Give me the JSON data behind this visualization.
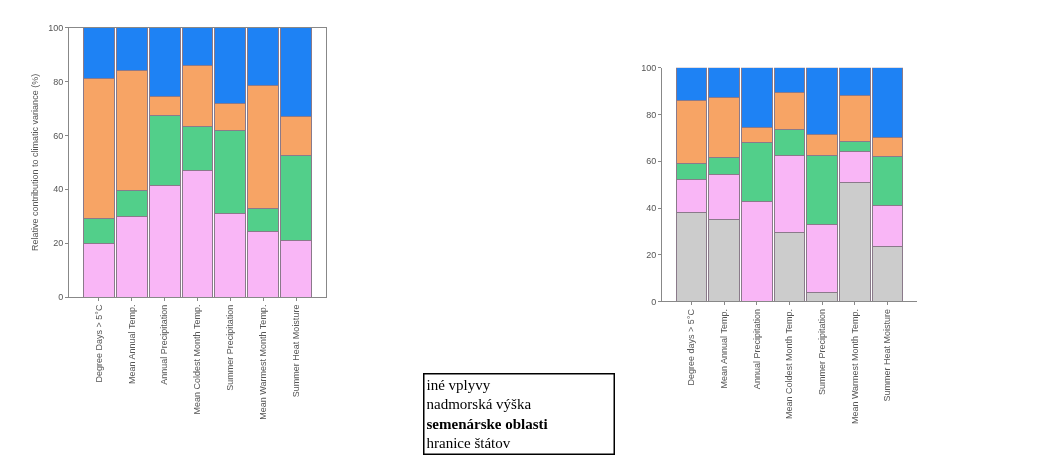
{
  "chart_data": [
    {
      "type": "bar",
      "stacked": true,
      "ylabel": "Relative contribution to climatic variance (%)",
      "categories": [
        "Degree Days > 5°C",
        "Mean Annual Temp.",
        "Annual Precipitation",
        "Mean Coldest Month Temp.",
        "Summer Precipitation",
        "Mean Warmest Month Temp.",
        "Summer Heat Moisture"
      ],
      "ylim": [
        0,
        100
      ],
      "yticks": [
        0,
        20,
        40,
        60,
        80,
        100
      ],
      "series": [
        {
          "color": "#f9b6f6",
          "values": [
            20,
            30,
            41.5,
            47,
            31,
            24.5,
            21
          ]
        },
        {
          "color": "#52cf8a",
          "values": [
            9,
            9.5,
            26,
            16.5,
            31,
            8.5,
            31.5
          ]
        },
        {
          "color": "#f7a465",
          "values": [
            52,
            44.5,
            7,
            22.5,
            10,
            45.5,
            14.5
          ]
        },
        {
          "color": "#1e82f4",
          "values": [
            19,
            16,
            25.5,
            14,
            28,
            21.5,
            33
          ]
        }
      ],
      "annotations": [
        "iné vplyvy\nnadmorská výška\nsemenárske oblasti\nhranice štátov"
      ]
    },
    {
      "type": "bar",
      "stacked": true,
      "categories": [
        "Degree days > 5°C",
        "Mean Annual Temp.",
        "Annual Precipitation",
        "Mean Coldest Month Temp.",
        "Summer Precipitation",
        "Mean Warmest Month Temp.",
        "Summer Heat Moisture"
      ],
      "ylim": [
        0,
        100
      ],
      "yticks": [
        0,
        20,
        40,
        60,
        80,
        100
      ],
      "series": [
        {
          "color": "#cccccc",
          "values": [
            38,
            35,
            0,
            29.5,
            4,
            51,
            23.5
          ]
        },
        {
          "color": "#f9b6f6",
          "values": [
            14,
            19.5,
            43,
            33,
            29,
            13,
            17.5
          ]
        },
        {
          "color": "#52cf8a",
          "values": [
            7,
            7,
            25,
            11,
            29.5,
            4.5,
            21
          ]
        },
        {
          "color": "#f7a465",
          "values": [
            27,
            26,
            6.5,
            16,
            9,
            19.5,
            8
          ]
        },
        {
          "color": "#1e82f4",
          "values": [
            14,
            12.5,
            25.5,
            10.5,
            28.5,
            12,
            30
          ]
        }
      ]
    }
  ]
}
